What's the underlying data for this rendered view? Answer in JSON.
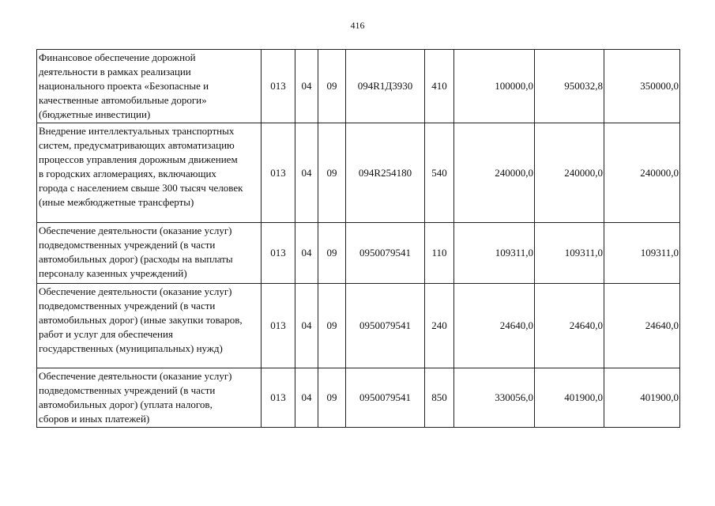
{
  "page_number": "416",
  "rows": [
    {
      "description": "Финансовое обеспечение дорожной\nдеятельности в рамках реализации\nнационального проекта «Безопасные и\nкачественные автомобильные дороги»\n(бюджетные инвестиции)",
      "ministry": "013",
      "section": "04",
      "subsection": "09",
      "target_article": "094R1Д3930",
      "expense_type": "410",
      "amount_1": "100000,0",
      "amount_2": "950032,8",
      "amount_3": "350000,0"
    },
    {
      "description": "Внедрение интеллектуальных транспортных\nсистем, предусматривающих автоматизацию\nпроцессов управления дорожным движением\nв городских агломерациях, включающих\nгорода с населением свыше 300 тысяч человек\n(иные межбюджетные трансферты)",
      "ministry": "013",
      "section": "04",
      "subsection": "09",
      "target_article": "094R254180",
      "expense_type": "540",
      "amount_1": "240000,0",
      "amount_2": "240000,0",
      "amount_3": "240000,0"
    },
    {
      "description": "Обеспечение деятельности (оказание услуг)\nподведомственных учреждений (в части\nавтомобильных дорог) (расходы на выплаты\nперсоналу казенных учреждений)",
      "ministry": "013",
      "section": "04",
      "subsection": "09",
      "target_article": "0950079541",
      "expense_type": "110",
      "amount_1": "109311,0",
      "amount_2": "109311,0",
      "amount_3": "109311,0"
    },
    {
      "description": "Обеспечение деятельности (оказание услуг)\nподведомственных учреждений (в части\nавтомобильных дорог) (иные закупки товаров,\nработ и услуг для обеспечения\nгосударственных (муниципальных) нужд)",
      "ministry": "013",
      "section": "04",
      "subsection": "09",
      "target_article": "0950079541",
      "expense_type": "240",
      "amount_1": "24640,0",
      "amount_2": "24640,0",
      "amount_3": "24640,0"
    },
    {
      "description": "Обеспечение деятельности (оказание услуг)\nподведомственных учреждений (в части\nавтомобильных дорог) (уплата налогов,\nсборов и иных платежей)",
      "ministry": "013",
      "section": "04",
      "subsection": "09",
      "target_article": "0950079541",
      "expense_type": "850",
      "amount_1": "330056,0",
      "amount_2": "401900,0",
      "amount_3": "401900,0"
    }
  ]
}
